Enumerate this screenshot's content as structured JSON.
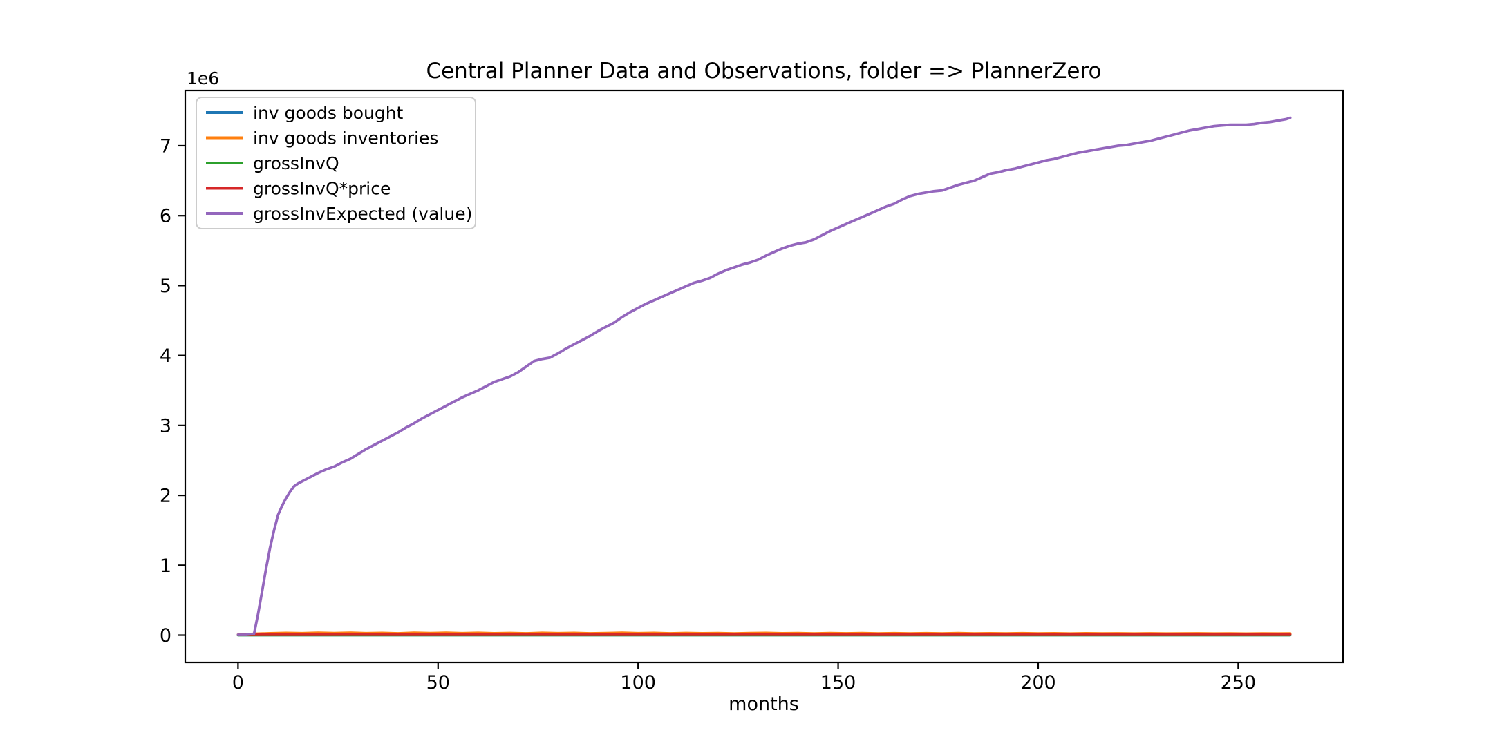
{
  "chart_data": {
    "type": "line",
    "title": "Central Planner Data and Observations, folder => PlannerZero",
    "xlabel": "months",
    "ylabel": "",
    "y_offset_label": "1e6",
    "y_unit_multiplier": 1000000,
    "xlim": [
      -13.2,
      276.2
    ],
    "ylim_e6": [
      -0.39,
      7.79
    ],
    "x_ticks": [
      0,
      50,
      100,
      150,
      200,
      250
    ],
    "y_ticks_e6": [
      0,
      1,
      2,
      3,
      4,
      5,
      6,
      7
    ],
    "grid": false,
    "legend_position": "upper-left",
    "axis_color": "#000000",
    "legend_border_color": "#cccccc",
    "series": [
      {
        "name": "inv goods bought",
        "color": "#1f77b4",
        "x": [
          0,
          20,
          40,
          60,
          80,
          100,
          120,
          140,
          160,
          180,
          200,
          220,
          240,
          260,
          263
        ],
        "values_e6": [
          0.001,
          0.001,
          0.001,
          0.001,
          0.001,
          0.001,
          0.001,
          0.001,
          0.001,
          0.001,
          0.001,
          0.001,
          0.001,
          0.001,
          0.001
        ]
      },
      {
        "name": "inv goods inventories",
        "color": "#ff7f0e",
        "x": [
          0,
          4,
          8,
          12,
          16,
          20,
          24,
          28,
          32,
          36,
          40,
          44,
          48,
          52,
          56,
          60,
          64,
          68,
          72,
          76,
          80,
          84,
          88,
          92,
          96,
          100,
          104,
          108,
          112,
          116,
          120,
          124,
          128,
          132,
          136,
          140,
          144,
          148,
          152,
          156,
          160,
          164,
          168,
          172,
          176,
          180,
          184,
          188,
          192,
          196,
          200,
          204,
          208,
          212,
          216,
          220,
          224,
          228,
          232,
          236,
          240,
          244,
          248,
          252,
          256,
          260,
          263
        ],
        "values_e6": [
          0.005,
          0.018,
          0.026,
          0.031,
          0.027,
          0.033,
          0.028,
          0.034,
          0.027,
          0.031,
          0.025,
          0.033,
          0.028,
          0.034,
          0.027,
          0.032,
          0.026,
          0.03,
          0.025,
          0.032,
          0.027,
          0.031,
          0.025,
          0.029,
          0.033,
          0.027,
          0.031,
          0.025,
          0.03,
          0.026,
          0.029,
          0.024,
          0.028,
          0.031,
          0.026,
          0.029,
          0.024,
          0.028,
          0.025,
          0.029,
          0.024,
          0.027,
          0.023,
          0.027,
          0.024,
          0.028,
          0.023,
          0.026,
          0.024,
          0.027,
          0.023,
          0.026,
          0.022,
          0.026,
          0.023,
          0.025,
          0.022,
          0.025,
          0.022,
          0.024,
          0.025,
          0.022,
          0.024,
          0.021,
          0.024,
          0.022,
          0.023
        ]
      },
      {
        "name": "grossInvQ",
        "color": "#2ca02c",
        "x": [
          0,
          20,
          40,
          60,
          80,
          100,
          120,
          140,
          160,
          180,
          200,
          220,
          240,
          260,
          263
        ],
        "values_e6": [
          0.002,
          0.002,
          0.002,
          0.002,
          0.002,
          0.002,
          0.002,
          0.002,
          0.002,
          0.002,
          0.002,
          0.002,
          0.002,
          0.002,
          0.002
        ]
      },
      {
        "name": "grossInvQ*price",
        "color": "#d62728",
        "x": [
          0,
          10,
          20,
          30,
          40,
          50,
          60,
          70,
          80,
          90,
          100,
          110,
          120,
          130,
          140,
          150,
          160,
          170,
          180,
          190,
          200,
          210,
          220,
          230,
          240,
          250,
          260,
          263
        ],
        "values_e6": [
          0.005,
          0.007,
          0.006,
          0.008,
          0.006,
          0.007,
          0.006,
          0.008,
          0.006,
          0.007,
          0.006,
          0.007,
          0.006,
          0.008,
          0.006,
          0.007,
          0.006,
          0.007,
          0.006,
          0.007,
          0.006,
          0.007,
          0.006,
          0.007,
          0.006,
          0.007,
          0.006,
          0.006
        ]
      },
      {
        "name": "grossInvExpected (value)",
        "color": "#9467bd",
        "x": [
          0,
          2,
          4,
          5,
          6,
          7,
          8,
          9,
          10,
          11,
          12,
          13,
          14,
          15,
          16,
          18,
          20,
          22,
          24,
          26,
          28,
          30,
          32,
          34,
          36,
          38,
          40,
          42,
          44,
          46,
          48,
          50,
          52,
          54,
          56,
          58,
          60,
          62,
          64,
          66,
          68,
          70,
          72,
          74,
          76,
          78,
          80,
          82,
          84,
          86,
          88,
          90,
          92,
          94,
          96,
          98,
          100,
          102,
          104,
          106,
          108,
          110,
          112,
          114,
          116,
          118,
          120,
          122,
          124,
          126,
          128,
          130,
          132,
          134,
          136,
          138,
          140,
          142,
          144,
          146,
          148,
          150,
          152,
          154,
          156,
          158,
          160,
          162,
          164,
          166,
          168,
          170,
          172,
          174,
          176,
          178,
          180,
          182,
          184,
          186,
          188,
          190,
          192,
          194,
          196,
          198,
          200,
          202,
          204,
          206,
          208,
          210,
          212,
          214,
          216,
          218,
          220,
          222,
          224,
          226,
          228,
          230,
          232,
          234,
          236,
          238,
          240,
          242,
          244,
          246,
          248,
          250,
          252,
          254,
          256,
          258,
          260,
          262,
          263
        ],
        "values_e6": [
          0.005,
          0.005,
          0.02,
          0.3,
          0.62,
          0.95,
          1.25,
          1.5,
          1.72,
          1.85,
          1.96,
          2.05,
          2.13,
          2.17,
          2.2,
          2.26,
          2.32,
          2.37,
          2.41,
          2.47,
          2.52,
          2.59,
          2.66,
          2.72,
          2.78,
          2.84,
          2.9,
          2.97,
          3.03,
          3.1,
          3.16,
          3.22,
          3.28,
          3.34,
          3.4,
          3.45,
          3.5,
          3.56,
          3.62,
          3.66,
          3.7,
          3.76,
          3.84,
          3.92,
          3.95,
          3.97,
          4.03,
          4.1,
          4.16,
          4.22,
          4.28,
          4.35,
          4.41,
          4.47,
          4.55,
          4.62,
          4.68,
          4.74,
          4.79,
          4.84,
          4.89,
          4.94,
          4.99,
          5.04,
          5.07,
          5.11,
          5.17,
          5.22,
          5.26,
          5.3,
          5.33,
          5.37,
          5.43,
          5.48,
          5.53,
          5.57,
          5.6,
          5.62,
          5.66,
          5.72,
          5.78,
          5.83,
          5.88,
          5.93,
          5.98,
          6.03,
          6.08,
          6.13,
          6.17,
          6.23,
          6.28,
          6.31,
          6.33,
          6.35,
          6.36,
          6.4,
          6.44,
          6.47,
          6.5,
          6.55,
          6.6,
          6.62,
          6.65,
          6.67,
          6.7,
          6.73,
          6.76,
          6.79,
          6.81,
          6.84,
          6.87,
          6.9,
          6.92,
          6.94,
          6.96,
          6.98,
          7.0,
          7.01,
          7.03,
          7.05,
          7.07,
          7.1,
          7.13,
          7.16,
          7.19,
          7.22,
          7.24,
          7.26,
          7.28,
          7.29,
          7.3,
          7.3,
          7.3,
          7.31,
          7.33,
          7.34,
          7.36,
          7.38,
          7.4
        ]
      }
    ]
  }
}
